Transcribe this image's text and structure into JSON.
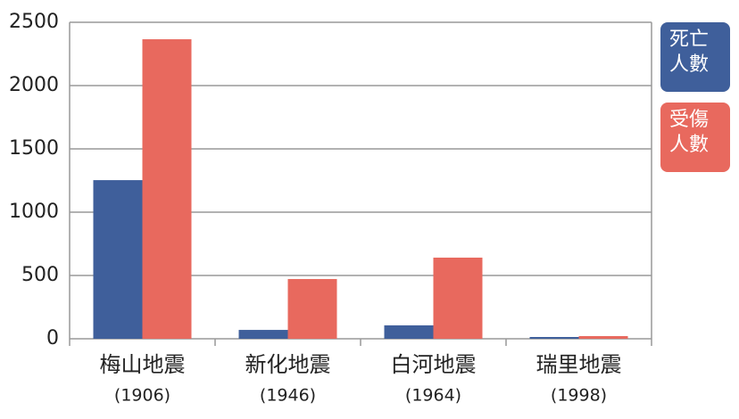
{
  "chart_data": {
    "type": "bar",
    "categories": [
      "梅山地震",
      "新化地震",
      "白河地震",
      "瑞里地震"
    ],
    "category_years": [
      "(1906)",
      "(1946)",
      "(1964)",
      "(1998)"
    ],
    "series": [
      {
        "name": "死亡人數",
        "color": "#3f5f9b",
        "values": [
          1253,
          70,
          106,
          14
        ]
      },
      {
        "name": "受傷人數",
        "color": "#e8695e",
        "values": [
          2366,
          472,
          641,
          21
        ]
      }
    ],
    "ylim": [
      0,
      2500
    ],
    "yticks": [
      0,
      500,
      1000,
      1500,
      2000,
      2500
    ],
    "grid": true
  }
}
